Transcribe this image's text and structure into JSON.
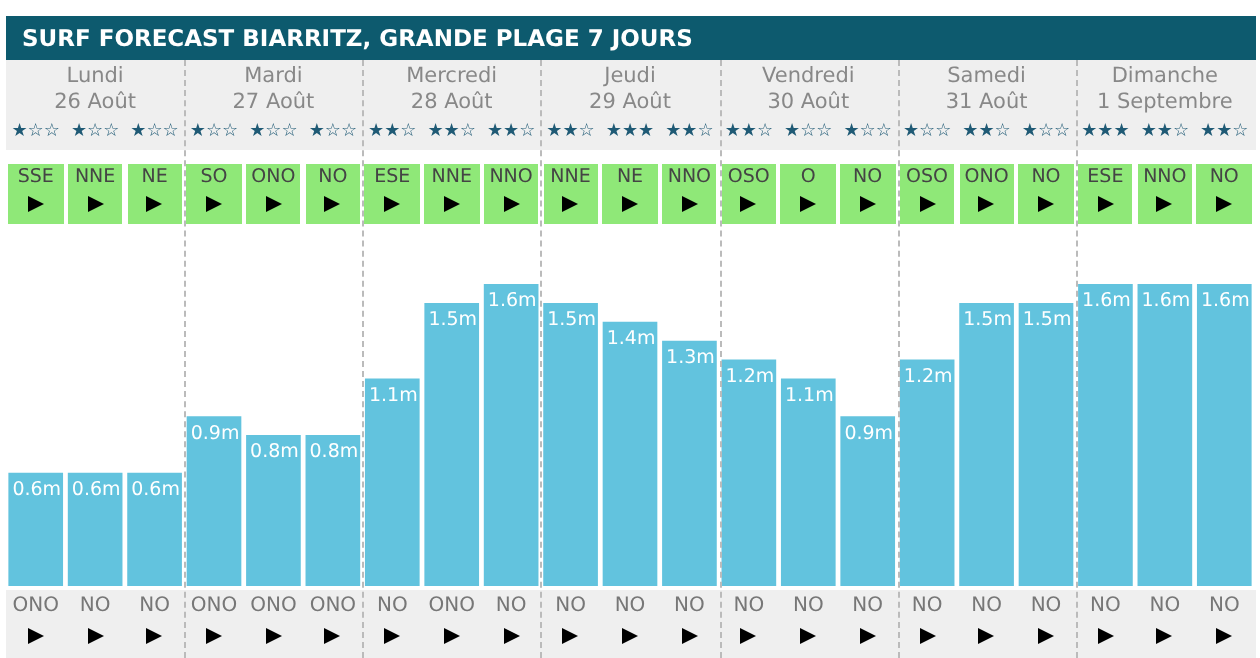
{
  "chart_data": {
    "type": "bar",
    "title": "SURF FORECAST BIARRITZ, GRANDE PLAGE 7 JOURS",
    "categories": [
      "ONO",
      "NO",
      "NO",
      "ONO",
      "ONO",
      "ONO",
      "NO",
      "ONO",
      "NO",
      "NO",
      "NO",
      "NO",
      "NO",
      "NO",
      "NO",
      "NO",
      "NO",
      "NO",
      "NO",
      "NO",
      "NO"
    ],
    "values": [
      0.6,
      0.6,
      0.6,
      0.9,
      0.8,
      0.8,
      1.1,
      1.5,
      1.6,
      1.5,
      1.4,
      1.3,
      1.2,
      1.1,
      0.9,
      1.2,
      1.5,
      1.5,
      1.6,
      1.6,
      1.6
    ],
    "value_labels": [
      "0.6m",
      "0.6m",
      "0.6m",
      "0.9m",
      "0.8m",
      "0.8m",
      "1.1m",
      "1.5m",
      "1.6m",
      "1.5m",
      "1.4m",
      "1.3m",
      "1.2m",
      "1.1m",
      "0.9m",
      "1.2m",
      "1.5m",
      "1.5m",
      "1.6m",
      "1.6m",
      "1.6m"
    ],
    "color": "#62c3de",
    "tick_labels": "x",
    "grid": false,
    "legend": false,
    "annotations": [
      "Lundi",
      "Mardi",
      "Mercredi",
      "Jeudi",
      "Vendredi",
      "Samedi",
      "Dimanche",
      "26 Août",
      "27 Août",
      "28 Août",
      "29 Août",
      "30 Août",
      "31 Août",
      "1 Septembre",
      "★☆☆",
      "★☆☆",
      "★☆☆",
      "★☆☆",
      "★☆☆",
      "★☆☆",
      "★★☆",
      "★★☆",
      "★★☆",
      "★★☆",
      "★★★",
      "★★☆",
      "★★☆",
      "★☆☆",
      "★☆☆",
      "★☆☆",
      "★★☆",
      "★☆☆",
      "★★★",
      "★★☆",
      "★★☆",
      "SSE",
      "NNE",
      "NE",
      "SO",
      "ONO",
      "NO",
      "ESE",
      "NNE",
      "NNO",
      "NNE",
      "NE",
      "NNO",
      "OSO",
      "O",
      "NO",
      "OSO",
      "ONO",
      "NO",
      "ESE",
      "NNO",
      "NO"
    ]
  }
}
